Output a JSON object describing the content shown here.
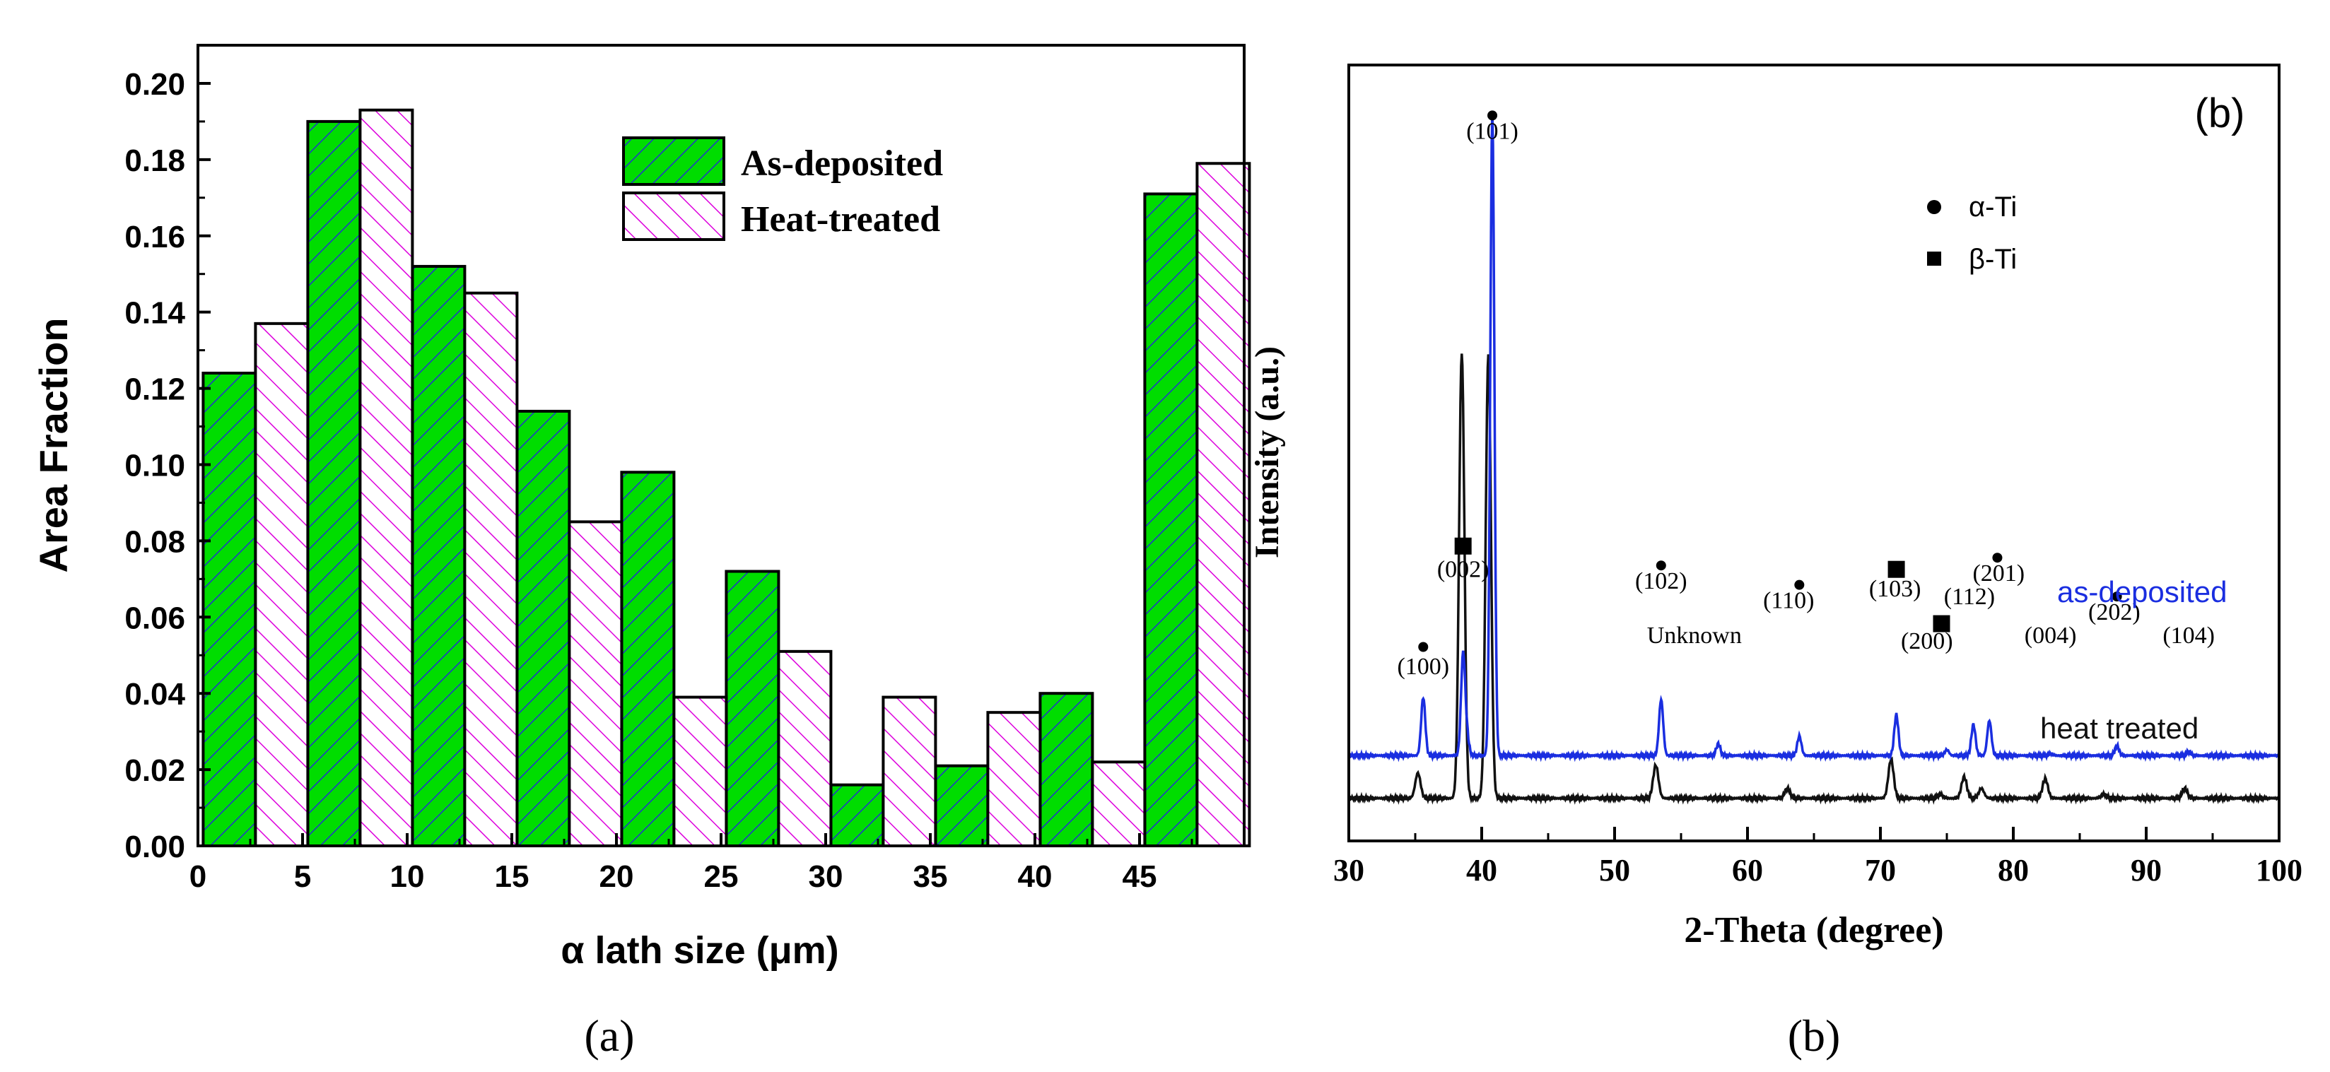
{
  "colors": {
    "as_deposited_fill": "#00dd00",
    "as_deposited_hatch": "#2233cc",
    "heat_treated_fill": "#ffffff",
    "heat_treated_hatch": "#dd00dd",
    "xrd_as_deposited": "#1a2ee0",
    "xrd_heat_treated": "#111111",
    "axis": "#000000"
  },
  "chart_data": [
    {
      "type": "bar",
      "panel_label": "(a)",
      "xlabel": "α lath size (μm)",
      "ylabel": "Area Fraction",
      "xlim": [
        0,
        50
      ],
      "ylim": [
        0,
        0.21
      ],
      "xticks": [
        "0",
        "5",
        "10",
        "15",
        "20",
        "25",
        "30",
        "35",
        "40",
        "45"
      ],
      "yticks": [
        "0.00",
        "0.02",
        "0.04",
        "0.06",
        "0.08",
        "0.10",
        "0.12",
        "0.14",
        "0.16",
        "0.18",
        "0.20"
      ],
      "bin_starts": [
        0,
        5,
        10,
        15,
        20,
        25,
        30,
        35,
        40,
        45
      ],
      "legend_position": "top-right",
      "series": [
        {
          "name": "As-deposited",
          "values": [
            0.124,
            0.19,
            0.152,
            0.114,
            0.098,
            0.072,
            0.016,
            0.021,
            0.04,
            0.171
          ]
        },
        {
          "name": "Heat-treated",
          "values": [
            0.137,
            0.193,
            0.145,
            0.085,
            0.039,
            0.051,
            0.039,
            0.035,
            0.022,
            0.179
          ]
        }
      ]
    },
    {
      "type": "line",
      "panel_label": "(b)",
      "inner_label": "(b)",
      "xlabel": "2-Theta (degree)",
      "ylabel": "Intensity (a.u.)",
      "xlim": [
        30,
        100
      ],
      "xticks": [
        "30",
        "40",
        "50",
        "60",
        "70",
        "80",
        "90",
        "100"
      ],
      "y_axis_ticks": false,
      "legend": [
        {
          "marker": "circle",
          "label": "α-Ti"
        },
        {
          "marker": "square",
          "label": "β-Ti"
        }
      ],
      "series": [
        {
          "name": "as-deposited",
          "baseline": 0.44,
          "peaks": [
            [
              35.6,
              0.3
            ],
            [
              38.6,
              0.52
            ],
            [
              38.9,
              0.09
            ],
            [
              40.8,
              3.32
            ],
            [
              53.5,
              0.29
            ],
            [
              57.8,
              0.06
            ],
            [
              63.9,
              0.1
            ],
            [
              71.2,
              0.21
            ],
            [
              75.0,
              0.03
            ],
            [
              77.0,
              0.16
            ],
            [
              78.2,
              0.18
            ],
            [
              82.8,
              0.01
            ],
            [
              87.8,
              0.05
            ],
            [
              93.2,
              0.02
            ]
          ]
        },
        {
          "name": "heat treated",
          "baseline": 0.22,
          "peaks": [
            [
              35.2,
              0.13
            ],
            [
              38.5,
              2.3
            ],
            [
              40.5,
              2.29
            ],
            [
              53.1,
              0.17
            ],
            [
              63.0,
              0.05
            ],
            [
              70.8,
              0.2
            ],
            [
              74.5,
              0.02
            ],
            [
              76.3,
              0.11
            ],
            [
              77.6,
              0.05
            ],
            [
              82.4,
              0.1
            ],
            [
              86.8,
              0.02
            ],
            [
              92.9,
              0.05
            ]
          ]
        }
      ],
      "peak_annotations": [
        {
          "label": "(100)",
          "x": 35.6,
          "marker": "circle"
        },
        {
          "label": "(002)",
          "x": 38.6,
          "marker": "square"
        },
        {
          "label": "(101)",
          "x": 40.8,
          "marker": "circle"
        },
        {
          "label": "(102)",
          "x": 53.5,
          "marker": "circle"
        },
        {
          "label": "Unknown",
          "x": 57.8,
          "marker": "none"
        },
        {
          "label": "(110)",
          "x": 63.9,
          "marker": "circle"
        },
        {
          "label": "(103)",
          "x": 71.2,
          "marker": "square"
        },
        {
          "label": "(200)",
          "x": 75.0,
          "marker": "square"
        },
        {
          "label": "(112)",
          "x": 77.0,
          "marker": "none"
        },
        {
          "label": "(201)",
          "x": 78.2,
          "marker": "circle"
        },
        {
          "label": "(004)",
          "x": 82.8,
          "marker": "none"
        },
        {
          "label": "(202)",
          "x": 87.8,
          "marker": "circle"
        },
        {
          "label": "(104)",
          "x": 93.2,
          "marker": "none"
        }
      ],
      "curve_labels": [
        "as-deposited",
        "heat treated"
      ]
    }
  ]
}
